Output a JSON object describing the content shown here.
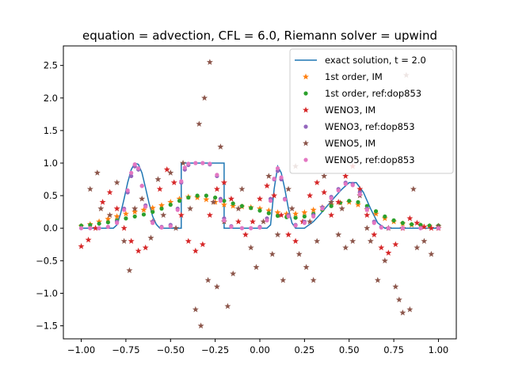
{
  "chart_data": {
    "type": "scatter",
    "title": "equation = advection, CFL = 6.0, Riemann solver = upwind",
    "xlabel": "",
    "ylabel": "",
    "xlim": [
      -1.1,
      1.1
    ],
    "ylim": [
      -1.7,
      2.8
    ],
    "x_ticks": [
      -1.0,
      -0.75,
      -0.5,
      -0.25,
      0.0,
      0.25,
      0.5,
      0.75,
      1.0
    ],
    "x_tick_labels": [
      "−1.00",
      "−0.75",
      "−0.50",
      "−0.25",
      "0.00",
      "0.25",
      "0.50",
      "0.75",
      "1.00"
    ],
    "y_ticks": [
      -1.5,
      -1.0,
      -0.5,
      0.0,
      0.5,
      1.0,
      1.5,
      2.0,
      2.5
    ],
    "y_tick_labels": [
      "−1.5",
      "−1.0",
      "−0.5",
      "0.0",
      "0.5",
      "1.0",
      "1.5",
      "2.0",
      "2.5"
    ],
    "grid": false,
    "legend_position": "top-right",
    "series": [
      {
        "name": "exact solution, t = 2.0",
        "marker": "line",
        "color": "#1f77b4",
        "x": [
          -1.0,
          -0.84,
          -0.82,
          -0.8,
          -0.78,
          -0.76,
          -0.74,
          -0.72,
          -0.7,
          -0.68,
          -0.66,
          -0.64,
          -0.62,
          -0.6,
          -0.58,
          -0.56,
          -0.44,
          -0.44,
          -0.4,
          -0.4,
          -0.2,
          -0.2,
          0.0,
          0.02,
          0.04,
          0.06,
          0.08,
          0.1,
          0.12,
          0.14,
          0.16,
          0.18,
          0.2,
          0.25,
          0.26,
          0.3,
          0.34,
          0.38,
          0.42,
          0.46,
          0.5,
          0.54,
          0.58,
          0.62,
          0.66,
          0.7,
          0.74,
          1.0
        ],
        "y": [
          0.0,
          0.0,
          0.0,
          0.05,
          0.22,
          0.45,
          0.7,
          0.9,
          1.0,
          0.98,
          0.85,
          0.62,
          0.38,
          0.18,
          0.06,
          0.0,
          0.0,
          1.0,
          1.0,
          1.0,
          1.0,
          0.0,
          0.0,
          0.0,
          0.0,
          0.05,
          0.6,
          0.95,
          0.85,
          0.6,
          0.3,
          0.08,
          0.0,
          0.0,
          0.02,
          0.1,
          0.22,
          0.35,
          0.48,
          0.6,
          0.7,
          0.7,
          0.55,
          0.3,
          0.08,
          0.0,
          0.0,
          0.0
        ]
      },
      {
        "name": "1st order, IM",
        "marker": "star",
        "color": "#ff7f0e",
        "x": [
          -1.0,
          -0.95,
          -0.9,
          -0.85,
          -0.8,
          -0.75,
          -0.7,
          -0.65,
          -0.6,
          -0.55,
          -0.5,
          -0.45,
          -0.4,
          -0.35,
          -0.3,
          -0.25,
          -0.2,
          -0.15,
          -0.1,
          -0.05,
          0.0,
          0.05,
          0.1,
          0.15,
          0.2,
          0.25,
          0.3,
          0.35,
          0.4,
          0.45,
          0.5,
          0.55,
          0.6,
          0.65,
          0.7,
          0.75,
          0.8,
          0.85,
          0.9,
          0.95,
          1.0
        ],
        "y": [
          0.03,
          0.06,
          0.1,
          0.14,
          0.18,
          0.22,
          0.25,
          0.28,
          0.31,
          0.35,
          0.4,
          0.45,
          0.48,
          0.47,
          0.44,
          0.4,
          0.36,
          0.34,
          0.33,
          0.32,
          0.3,
          0.27,
          0.24,
          0.22,
          0.22,
          0.24,
          0.28,
          0.32,
          0.36,
          0.39,
          0.4,
          0.36,
          0.29,
          0.22,
          0.15,
          0.1,
          0.07,
          0.05,
          0.04,
          0.03,
          0.03
        ]
      },
      {
        "name": "1st order, ref:dop853",
        "marker": "dot",
        "color": "#2ca02c",
        "x": [
          -1.0,
          -0.95,
          -0.9,
          -0.85,
          -0.8,
          -0.75,
          -0.7,
          -0.65,
          -0.6,
          -0.55,
          -0.5,
          -0.45,
          -0.4,
          -0.35,
          -0.3,
          -0.25,
          -0.2,
          -0.15,
          -0.1,
          -0.05,
          0.0,
          0.05,
          0.1,
          0.15,
          0.2,
          0.25,
          0.3,
          0.35,
          0.4,
          0.45,
          0.5,
          0.55,
          0.6,
          0.65,
          0.7,
          0.75,
          0.8,
          0.85,
          0.9,
          0.95,
          1.0
        ],
        "y": [
          0.04,
          0.05,
          0.07,
          0.09,
          0.12,
          0.15,
          0.18,
          0.21,
          0.25,
          0.3,
          0.36,
          0.42,
          0.47,
          0.5,
          0.5,
          0.47,
          0.42,
          0.38,
          0.34,
          0.31,
          0.27,
          0.23,
          0.19,
          0.17,
          0.16,
          0.18,
          0.22,
          0.28,
          0.34,
          0.39,
          0.42,
          0.4,
          0.34,
          0.26,
          0.18,
          0.12,
          0.08,
          0.06,
          0.05,
          0.04,
          0.04
        ]
      },
      {
        "name": "WENO3, IM",
        "marker": "star",
        "color": "#d62728",
        "x": [
          -1.0,
          -0.96,
          -0.92,
          -0.88,
          -0.84,
          -0.8,
          -0.76,
          -0.72,
          -0.68,
          -0.64,
          -0.6,
          -0.56,
          -0.52,
          -0.48,
          -0.44,
          -0.4,
          -0.36,
          -0.32,
          -0.28,
          -0.24,
          -0.2,
          -0.16,
          -0.12,
          -0.08,
          -0.04,
          0.0,
          0.04,
          0.08,
          0.12,
          0.16,
          0.2,
          0.24,
          0.28,
          0.32,
          0.36,
          0.4,
          0.44,
          0.48,
          0.52,
          0.56,
          0.6,
          0.64,
          0.68,
          0.72,
          0.76,
          0.8,
          0.84,
          0.88,
          0.92,
          0.96,
          1.0
        ],
        "y": [
          -0.28,
          -0.18,
          0.0,
          0.4,
          0.55,
          0.3,
          0.0,
          -0.2,
          -0.35,
          -0.3,
          0.1,
          0.6,
          0.9,
          0.7,
          0.2,
          -0.2,
          -0.35,
          -0.25,
          0.2,
          0.6,
          0.7,
          0.45,
          0.1,
          -0.1,
          0.1,
          0.45,
          0.65,
          0.5,
          0.2,
          -0.1,
          -0.2,
          0.1,
          0.5,
          0.7,
          0.55,
          0.2,
          0.4,
          0.8,
          0.95,
          0.6,
          0.2,
          -0.1,
          -0.3,
          -0.38,
          -0.25,
          0.0,
          0.15,
          0.08,
          0.02,
          0.0,
          0.0
        ]
      },
      {
        "name": "WENO3, ref:dop853",
        "marker": "dot",
        "color": "#9467bd",
        "x": [
          -1.0,
          -0.95,
          -0.9,
          -0.85,
          -0.8,
          -0.76,
          -0.74,
          -0.72,
          -0.7,
          -0.68,
          -0.66,
          -0.64,
          -0.6,
          -0.55,
          -0.5,
          -0.46,
          -0.44,
          -0.42,
          -0.4,
          -0.36,
          -0.32,
          -0.28,
          -0.24,
          -0.22,
          -0.2,
          -0.16,
          -0.1,
          -0.05,
          0.0,
          0.04,
          0.06,
          0.08,
          0.1,
          0.12,
          0.14,
          0.16,
          0.2,
          0.25,
          0.3,
          0.35,
          0.4,
          0.44,
          0.48,
          0.52,
          0.56,
          0.6,
          0.64,
          0.68,
          0.72,
          0.8,
          0.9,
          1.0
        ],
        "y": [
          0.0,
          0.0,
          0.0,
          0.02,
          0.1,
          0.3,
          0.55,
          0.8,
          0.95,
          0.9,
          0.65,
          0.35,
          0.1,
          0.02,
          0.05,
          0.3,
          0.7,
          0.9,
          0.97,
          1.0,
          1.0,
          0.98,
          0.8,
          0.45,
          0.15,
          0.03,
          0.0,
          0.0,
          0.02,
          0.15,
          0.45,
          0.75,
          0.88,
          0.75,
          0.45,
          0.2,
          0.05,
          0.1,
          0.2,
          0.32,
          0.48,
          0.6,
          0.7,
          0.68,
          0.55,
          0.3,
          0.1,
          0.02,
          0.0,
          0.0,
          0.0,
          0.0
        ]
      },
      {
        "name": "WENO5, IM",
        "marker": "star",
        "color": "#8c564b",
        "x": [
          -0.95,
          -0.91,
          -0.89,
          -0.84,
          -0.8,
          -0.76,
          -0.73,
          -0.7,
          -0.66,
          -0.61,
          -0.57,
          -0.54,
          -0.5,
          -0.47,
          -0.43,
          -0.39,
          -0.36,
          -0.34,
          -0.33,
          -0.31,
          -0.29,
          -0.28,
          -0.26,
          -0.24,
          -0.22,
          -0.2,
          -0.18,
          -0.15,
          -0.12,
          -0.1,
          -0.05,
          -0.02,
          0.02,
          0.05,
          0.07,
          0.1,
          0.13,
          0.16,
          0.18,
          0.2,
          0.22,
          0.26,
          0.28,
          0.3,
          0.32,
          0.36,
          0.4,
          0.44,
          0.46,
          0.48,
          0.52,
          0.56,
          0.6,
          0.62,
          0.66,
          0.7,
          0.72,
          0.76,
          0.78,
          0.8,
          0.82,
          0.84,
          0.86,
          0.88,
          0.92,
          0.96,
          1.0
        ],
        "y": [
          0.6,
          0.85,
          0.3,
          0.2,
          0.7,
          -0.2,
          -0.65,
          0.3,
          0.45,
          -0.15,
          0.75,
          0.2,
          0.85,
          0.0,
          1.0,
          0.3,
          -1.25,
          1.6,
          -1.5,
          2.0,
          -0.8,
          2.55,
          0.4,
          -0.9,
          1.25,
          0.1,
          -1.2,
          -0.7,
          0.3,
          0.6,
          -0.3,
          -0.6,
          0.1,
          0.8,
          -0.4,
          -0.1,
          -0.8,
          0.6,
          0.3,
          0.95,
          -0.4,
          -0.6,
          0.1,
          -0.8,
          -0.2,
          0.8,
          0.4,
          -0.1,
          0.3,
          -0.3,
          -0.2,
          0.5,
          0.0,
          -0.2,
          -0.8,
          -0.5,
          0.0,
          -0.9,
          -1.1,
          -1.3,
          2.35,
          -1.25,
          0.6,
          -0.3,
          -0.2,
          -0.4,
          0.03
        ]
      },
      {
        "name": "WENO5, ref:dop853",
        "marker": "dot",
        "color": "#e377c2",
        "x": [
          -1.0,
          -0.95,
          -0.9,
          -0.85,
          -0.8,
          -0.76,
          -0.74,
          -0.72,
          -0.7,
          -0.68,
          -0.66,
          -0.64,
          -0.6,
          -0.55,
          -0.5,
          -0.46,
          -0.44,
          -0.42,
          -0.4,
          -0.36,
          -0.32,
          -0.28,
          -0.24,
          -0.22,
          -0.2,
          -0.16,
          -0.1,
          -0.05,
          0.0,
          0.04,
          0.06,
          0.08,
          0.1,
          0.12,
          0.14,
          0.16,
          0.2,
          0.25,
          0.3,
          0.35,
          0.4,
          0.44,
          0.48,
          0.52,
          0.56,
          0.6,
          0.64,
          0.68,
          0.72,
          0.8,
          0.9,
          1.0
        ],
        "y": [
          0.0,
          0.0,
          0.0,
          0.02,
          0.08,
          0.28,
          0.58,
          0.85,
          0.98,
          0.92,
          0.65,
          0.33,
          0.08,
          0.01,
          0.03,
          0.28,
          0.72,
          0.93,
          0.99,
          1.0,
          1.0,
          0.99,
          0.82,
          0.42,
          0.12,
          0.02,
          0.0,
          0.0,
          0.01,
          0.12,
          0.42,
          0.76,
          0.92,
          0.78,
          0.44,
          0.18,
          0.04,
          0.08,
          0.18,
          0.3,
          0.46,
          0.58,
          0.68,
          0.66,
          0.52,
          0.28,
          0.08,
          0.01,
          0.0,
          0.0,
          0.0,
          0.0
        ]
      }
    ]
  }
}
